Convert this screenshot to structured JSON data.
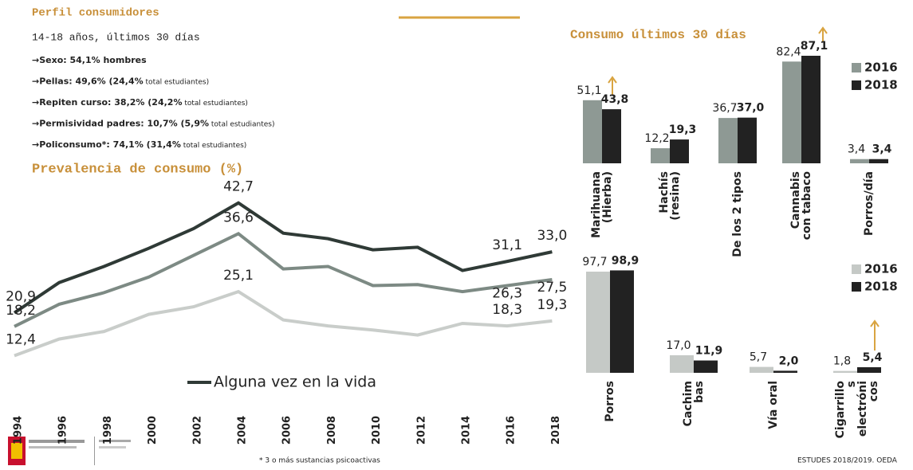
{
  "header": {
    "title": "Perfil consumidores",
    "subtitle": "14-18 años, últimos 30 días",
    "bullets": [
      {
        "label": "Sexo:",
        "text": "54,1% hombres"
      },
      {
        "label": "Pellas:",
        "text": "49,6% (24,4%",
        "note": "total estudiantes)"
      },
      {
        "label": "Repiten curso:",
        "text": "38,2% (24,2%",
        "note": "total estudiantes)"
      },
      {
        "label": "Permisividad padres:",
        "text": "10,7% (5,9%",
        "note": "total estudiantes)"
      },
      {
        "label": "Policonsumo*:",
        "text": "74,1% (31,4%",
        "note": "total estudiantes)"
      }
    ],
    "footnote": "* 3 o más sustancias psicoactivas",
    "source": "ESTUDES 2018/2019. OEDA"
  },
  "chart_data": [
    {
      "type": "line",
      "title": "Prevalencia de consumo (%)",
      "categories": [
        "1994",
        "1996",
        "1998",
        "2000",
        "2002",
        "2004",
        "2006",
        "2008",
        "2010",
        "2012",
        "2014",
        "2016",
        "2018"
      ],
      "series": [
        {
          "name": "Alguna vez en la vida",
          "color": "#2f3a36",
          "values": [
            20.9,
            26.9,
            30.1,
            33.7,
            37.6,
            42.7,
            36.7,
            35.6,
            33.4,
            33.9,
            29.3,
            31.1,
            33.0
          ],
          "value_labels": [
            "20,9",
            null,
            null,
            null,
            null,
            "42,7",
            null,
            null,
            null,
            null,
            null,
            "31,1",
            "33,0"
          ]
        },
        {
          "color": "#7d8a84",
          "values": [
            18.2,
            22.6,
            24.9,
            28.0,
            32.3,
            36.6,
            29.6,
            30.1,
            26.3,
            26.5,
            25.1,
            26.3,
            27.5
          ],
          "value_labels": [
            "18,2",
            null,
            null,
            null,
            null,
            "36,6",
            null,
            null,
            null,
            null,
            null,
            "26,3",
            "27,5"
          ]
        },
        {
          "color": "#c9cdca",
          "values": [
            12.4,
            15.7,
            17.2,
            20.6,
            22.1,
            25.1,
            19.5,
            18.3,
            17.5,
            16.5,
            18.8,
            18.3,
            19.3
          ],
          "value_labels": [
            "12,4",
            null,
            null,
            null,
            null,
            "25,1",
            null,
            null,
            null,
            null,
            null,
            "18,3",
            "19,3"
          ]
        }
      ]
    },
    {
      "type": "bar",
      "title": "Consumo últimos 30 días",
      "categories": [
        [
          "Marihuana",
          "(Hierba)"
        ],
        [
          "Hachís",
          "(resina)"
        ],
        [
          "De los 2 tipos"
        ],
        [
          "Cannabis",
          "con tabaco"
        ],
        [
          "Porros/día"
        ]
      ],
      "series": [
        {
          "name": "2016",
          "color": "#8e9994",
          "values": [
            51.1,
            12.2,
            36.7,
            82.4,
            3.4
          ],
          "value_labels": [
            "51,1",
            "12,2",
            "36,7",
            "82,4",
            "3,4"
          ]
        },
        {
          "name": "2018",
          "color": "#222222",
          "values": [
            43.8,
            19.3,
            37.0,
            87.1,
            3.4
          ],
          "value_labels": [
            "43,8",
            "19,3",
            "37,0",
            "87,1",
            "3,4"
          ]
        }
      ]
    },
    {
      "type": "bar",
      "categories": [
        [
          "Porros"
        ],
        [
          "Cachim",
          "bas"
        ],
        [
          "Vía oral"
        ],
        [
          "Cigarrillo",
          "s",
          "electróni",
          "cos"
        ]
      ],
      "series": [
        {
          "name": "2016",
          "color": "#c5c9c6",
          "values": [
            97.7,
            17.0,
            5.7,
            1.8
          ],
          "value_labels": [
            "97,7",
            "17,0",
            "5,7",
            "1,8"
          ]
        },
        {
          "name": "2018",
          "color": "#222222",
          "values": [
            98.9,
            11.9,
            2.0,
            5.4
          ],
          "value_labels": [
            "98,9",
            "11,9",
            "2,0",
            "5,4"
          ]
        }
      ]
    }
  ]
}
